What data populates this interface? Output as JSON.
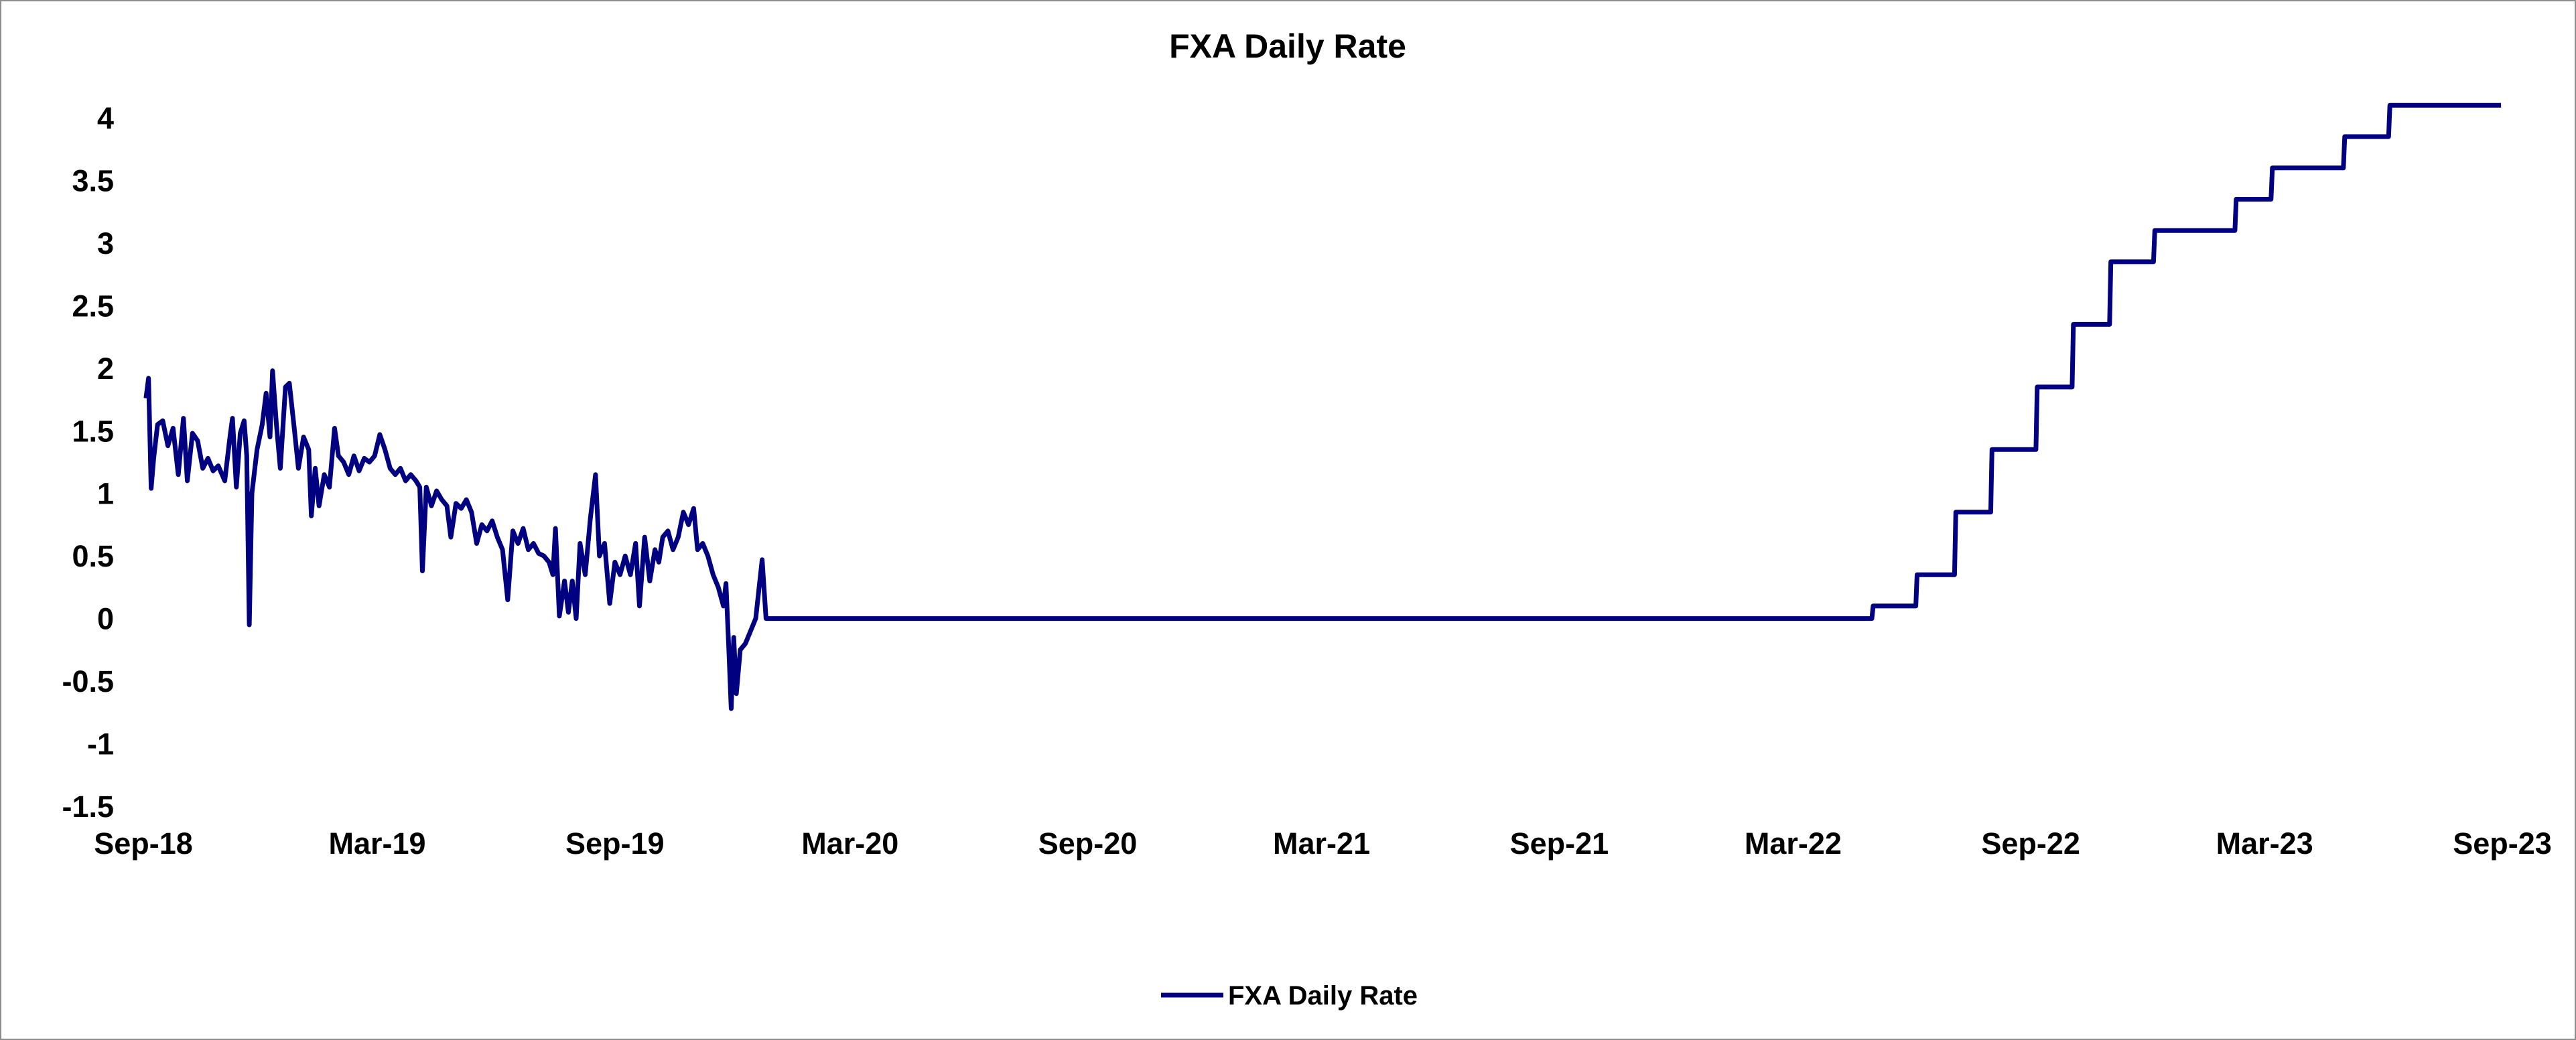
{
  "chart_data": {
    "type": "line",
    "title": "FXA Daily Rate",
    "xlabel": "",
    "ylabel": "",
    "ylim": [
      -1.5,
      4
    ],
    "yticks": [
      "4",
      "3.5",
      "3",
      "2.5",
      "2",
      "1.5",
      "1",
      "0.5",
      "0",
      "-0.5",
      "-1",
      "-1.5"
    ],
    "xlim": [
      "2018-09-01",
      "2023-09-01"
    ],
    "xticks": [
      {
        "label": "Sep-18",
        "date": "2018-09-01"
      },
      {
        "label": "Mar-19",
        "date": "2019-03-01"
      },
      {
        "label": "Sep-19",
        "date": "2019-09-01"
      },
      {
        "label": "Mar-20",
        "date": "2020-03-01"
      },
      {
        "label": "Sep-20",
        "date": "2020-09-01"
      },
      {
        "label": "Mar-21",
        "date": "2021-03-01"
      },
      {
        "label": "Sep-21",
        "date": "2021-09-01"
      },
      {
        "label": "Mar-22",
        "date": "2022-03-01"
      },
      {
        "label": "Sep-22",
        "date": "2022-09-01"
      },
      {
        "label": "Mar-23",
        "date": "2023-03-01"
      },
      {
        "label": "Sep-23",
        "date": "2023-09-01"
      }
    ],
    "grid": false,
    "legend_position": "bottom-center",
    "series": [
      {
        "name": "FXA Daily Rate",
        "color": "#000080",
        "points": [
          [
            "2018-09-03",
            1.76
          ],
          [
            "2018-09-05",
            1.92
          ],
          [
            "2018-09-07",
            1.04
          ],
          [
            "2018-09-09",
            1.28
          ],
          [
            "2018-09-12",
            1.55
          ],
          [
            "2018-09-16",
            1.58
          ],
          [
            "2018-09-20",
            1.38
          ],
          [
            "2018-09-24",
            1.52
          ],
          [
            "2018-09-28",
            1.15
          ],
          [
            "2018-10-02",
            1.6
          ],
          [
            "2018-10-05",
            1.1
          ],
          [
            "2018-10-09",
            1.48
          ],
          [
            "2018-10-13",
            1.42
          ],
          [
            "2018-10-17",
            1.2
          ],
          [
            "2018-10-21",
            1.28
          ],
          [
            "2018-10-25",
            1.18
          ],
          [
            "2018-10-29",
            1.22
          ],
          [
            "2018-11-03",
            1.1
          ],
          [
            "2018-11-07",
            1.45
          ],
          [
            "2018-11-09",
            1.6
          ],
          [
            "2018-11-12",
            1.05
          ],
          [
            "2018-11-15",
            1.48
          ],
          [
            "2018-11-18",
            1.58
          ],
          [
            "2018-11-20",
            1.3
          ],
          [
            "2018-11-22",
            -0.05
          ],
          [
            "2018-11-24",
            1.0
          ],
          [
            "2018-11-28",
            1.35
          ],
          [
            "2018-12-02",
            1.55
          ],
          [
            "2018-12-05",
            1.8
          ],
          [
            "2018-12-08",
            1.45
          ],
          [
            "2018-12-10",
            1.98
          ],
          [
            "2018-12-13",
            1.55
          ],
          [
            "2018-12-16",
            1.2
          ],
          [
            "2018-12-20",
            1.85
          ],
          [
            "2018-12-23",
            1.88
          ],
          [
            "2018-12-27",
            1.5
          ],
          [
            "2018-12-30",
            1.2
          ],
          [
            "2019-01-03",
            1.45
          ],
          [
            "2019-01-07",
            1.35
          ],
          [
            "2019-01-09",
            0.82
          ],
          [
            "2019-01-12",
            1.2
          ],
          [
            "2019-01-15",
            0.9
          ],
          [
            "2019-01-19",
            1.15
          ],
          [
            "2019-01-23",
            1.05
          ],
          [
            "2019-01-27",
            1.52
          ],
          [
            "2019-01-30",
            1.3
          ],
          [
            "2019-02-03",
            1.25
          ],
          [
            "2019-02-07",
            1.15
          ],
          [
            "2019-02-11",
            1.3
          ],
          [
            "2019-02-15",
            1.18
          ],
          [
            "2019-02-19",
            1.28
          ],
          [
            "2019-02-23",
            1.25
          ],
          [
            "2019-02-27",
            1.3
          ],
          [
            "2019-03-03",
            1.47
          ],
          [
            "2019-03-07",
            1.35
          ],
          [
            "2019-03-11",
            1.2
          ],
          [
            "2019-03-15",
            1.15
          ],
          [
            "2019-03-19",
            1.2
          ],
          [
            "2019-03-23",
            1.1
          ],
          [
            "2019-03-27",
            1.15
          ],
          [
            "2019-03-31",
            1.1
          ],
          [
            "2019-04-03",
            1.05
          ],
          [
            "2019-04-05",
            0.38
          ],
          [
            "2019-04-08",
            1.05
          ],
          [
            "2019-04-12",
            0.9
          ],
          [
            "2019-04-16",
            1.02
          ],
          [
            "2019-04-20",
            0.95
          ],
          [
            "2019-04-24",
            0.9
          ],
          [
            "2019-04-27",
            0.65
          ],
          [
            "2019-05-01",
            0.92
          ],
          [
            "2019-05-05",
            0.88
          ],
          [
            "2019-05-09",
            0.95
          ],
          [
            "2019-05-13",
            0.85
          ],
          [
            "2019-05-17",
            0.6
          ],
          [
            "2019-05-21",
            0.75
          ],
          [
            "2019-05-25",
            0.7
          ],
          [
            "2019-05-29",
            0.78
          ],
          [
            "2019-06-02",
            0.65
          ],
          [
            "2019-06-06",
            0.55
          ],
          [
            "2019-06-10",
            0.15
          ],
          [
            "2019-06-14",
            0.7
          ],
          [
            "2019-06-18",
            0.6
          ],
          [
            "2019-06-22",
            0.72
          ],
          [
            "2019-06-26",
            0.55
          ],
          [
            "2019-06-30",
            0.6
          ],
          [
            "2019-07-04",
            0.52
          ],
          [
            "2019-07-08",
            0.5
          ],
          [
            "2019-07-12",
            0.45
          ],
          [
            "2019-07-15",
            0.35
          ],
          [
            "2019-07-17",
            0.72
          ],
          [
            "2019-07-20",
            0.02
          ],
          [
            "2019-07-24",
            0.3
          ],
          [
            "2019-07-27",
            0.05
          ],
          [
            "2019-07-30",
            0.3
          ],
          [
            "2019-08-02",
            0.0
          ],
          [
            "2019-08-05",
            0.6
          ],
          [
            "2019-08-09",
            0.35
          ],
          [
            "2019-08-13",
            0.8
          ],
          [
            "2019-08-17",
            1.15
          ],
          [
            "2019-08-20",
            0.5
          ],
          [
            "2019-08-24",
            0.6
          ],
          [
            "2019-08-28",
            0.12
          ],
          [
            "2019-09-01",
            0.45
          ],
          [
            "2019-09-05",
            0.35
          ],
          [
            "2019-09-09",
            0.5
          ],
          [
            "2019-09-13",
            0.35
          ],
          [
            "2019-09-17",
            0.6
          ],
          [
            "2019-09-20",
            0.1
          ],
          [
            "2019-09-24",
            0.65
          ],
          [
            "2019-09-28",
            0.3
          ],
          [
            "2019-10-02",
            0.55
          ],
          [
            "2019-10-05",
            0.45
          ],
          [
            "2019-10-08",
            0.65
          ],
          [
            "2019-10-12",
            0.7
          ],
          [
            "2019-10-16",
            0.55
          ],
          [
            "2019-10-20",
            0.65
          ],
          [
            "2019-10-24",
            0.85
          ],
          [
            "2019-10-28",
            0.75
          ],
          [
            "2019-11-01",
            0.88
          ],
          [
            "2019-11-04",
            0.55
          ],
          [
            "2019-11-08",
            0.6
          ],
          [
            "2019-11-12",
            0.5
          ],
          [
            "2019-11-16",
            0.35
          ],
          [
            "2019-11-20",
            0.25
          ],
          [
            "2019-11-24",
            0.1
          ],
          [
            "2019-11-26",
            0.28
          ],
          [
            "2019-11-28",
            -0.2
          ],
          [
            "2019-11-30",
            -0.72
          ],
          [
            "2019-12-02",
            -0.15
          ],
          [
            "2019-12-04",
            -0.6
          ],
          [
            "2019-12-07",
            -0.25
          ],
          [
            "2019-12-11",
            -0.2
          ],
          [
            "2019-12-15",
            -0.1
          ],
          [
            "2019-12-19",
            0.0
          ],
          [
            "2019-12-24",
            0.47
          ],
          [
            "2019-12-27",
            0.0
          ],
          [
            "2020-06-01",
            0.0
          ],
          [
            "2021-06-01",
            0.0
          ],
          [
            "2022-03-01",
            0.0
          ],
          [
            "2022-05-01",
            0.0
          ],
          [
            "2022-05-02",
            0.1
          ],
          [
            "2022-06-04",
            0.1
          ],
          [
            "2022-06-05",
            0.35
          ],
          [
            "2022-07-04",
            0.35
          ],
          [
            "2022-07-05",
            0.85
          ],
          [
            "2022-08-01",
            0.85
          ],
          [
            "2022-08-02",
            1.35
          ],
          [
            "2022-09-05",
            1.35
          ],
          [
            "2022-09-06",
            1.85
          ],
          [
            "2022-10-03",
            1.85
          ],
          [
            "2022-10-04",
            2.35
          ],
          [
            "2022-11-01",
            2.35
          ],
          [
            "2022-11-02",
            2.85
          ],
          [
            "2022-12-05",
            2.85
          ],
          [
            "2022-12-06",
            3.1
          ],
          [
            "2023-02-06",
            3.1
          ],
          [
            "2023-02-07",
            3.35
          ],
          [
            "2023-03-06",
            3.35
          ],
          [
            "2023-03-07",
            3.6
          ],
          [
            "2023-05-01",
            3.6
          ],
          [
            "2023-05-02",
            3.85
          ],
          [
            "2023-06-05",
            3.85
          ],
          [
            "2023-06-06",
            4.1
          ],
          [
            "2023-08-31",
            4.1
          ]
        ]
      }
    ]
  }
}
